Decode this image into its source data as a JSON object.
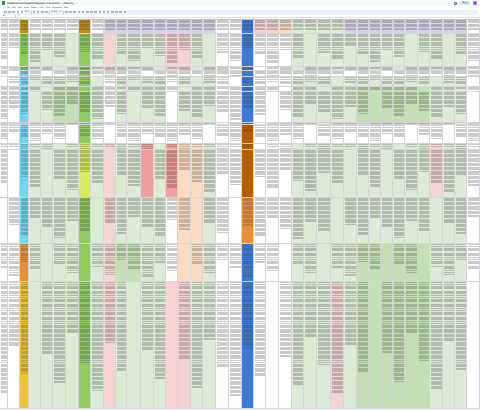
{
  "titlebar": {
    "doc_title": "Relational and Digital Pedagogies Framework — Mapping",
    "star_label": "☆",
    "share_label": "Share"
  },
  "menu": [
    "File",
    "Edit",
    "View",
    "Insert",
    "Format",
    "Data",
    "Tools",
    "Extensions",
    "Help"
  ],
  "toolbar": {
    "zoom": "50%",
    "font": "Default",
    "font_size": "10"
  },
  "formula": {
    "cell_ref": "A1",
    "fx": "fx"
  },
  "colors": {
    "olive": "#b8960c",
    "orange_brown": "#c78a10",
    "green": "#8dcf5a",
    "light_green": "#dcebd5",
    "mid_green": "#c3deb5",
    "pink": "#f6d3d3",
    "salmon": "#ef9f9f",
    "peach": "#fbdcc3",
    "lavender": "#d9d2e9",
    "blue": "#3c78d8",
    "dark_orange": "#b45f06",
    "orange": "#e69138",
    "sky": "#6fd6f4",
    "gold": "#f1c232",
    "yellow_green": "#d9ea5a"
  },
  "header_labels": [
    "Framework",
    "Element",
    "Pedagogy",
    "Description of practice",
    "Examples",
    "Digital tools",
    "Learner outcomes",
    "Evidence",
    "Teaching approach"
  ]
}
